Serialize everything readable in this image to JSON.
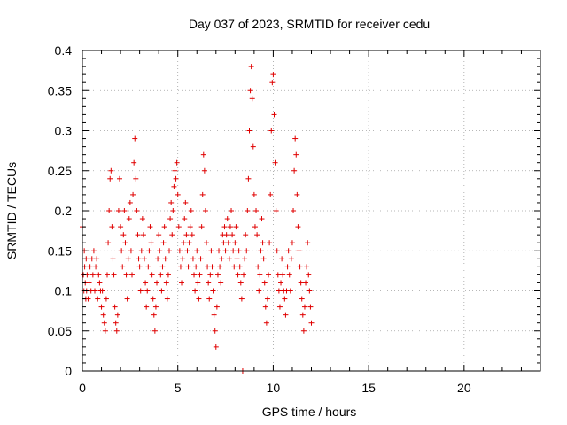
{
  "chart_data": {
    "type": "scatter",
    "title": "Day 037 of 2023, SRMTID for receiver cedu",
    "xlabel": "GPS time / hours",
    "ylabel": "SRMTID / TECUs",
    "xlim": [
      0,
      24
    ],
    "ylim": [
      0,
      0.4
    ],
    "xticks": [
      0,
      5,
      10,
      15,
      20
    ],
    "xtick_labels": [
      "0",
      "5",
      "10",
      "15",
      "20"
    ],
    "yticks": [
      0,
      0.05,
      0.1,
      0.15,
      0.2,
      0.25,
      0.3,
      0.35,
      0.4
    ],
    "ytick_labels": [
      "0",
      "0.05",
      "0.1",
      "0.15",
      "0.2",
      "0.25",
      "0.3",
      "0.35",
      "0.4"
    ],
    "grid": true,
    "marker": "+",
    "series": [
      {
        "color": "#e00000",
        "points": [
          [
            0.0,
            0.18
          ],
          [
            0.05,
            0.12
          ],
          [
            0.08,
            0.1
          ],
          [
            0.1,
            0.15
          ],
          [
            0.12,
            0.13
          ],
          [
            0.15,
            0.11
          ],
          [
            0.18,
            0.09
          ],
          [
            0.2,
            0.14
          ],
          [
            0.22,
            0.1
          ],
          [
            0.25,
            0.12
          ],
          [
            0.3,
            0.09
          ],
          [
            0.35,
            0.11
          ],
          [
            0.4,
            0.13
          ],
          [
            0.45,
            0.1
          ],
          [
            0.5,
            0.14
          ],
          [
            0.55,
            0.12
          ],
          [
            0.6,
            0.15
          ],
          [
            0.65,
            0.1
          ],
          [
            0.7,
            0.13
          ],
          [
            0.75,
            0.14
          ],
          [
            0.8,
            0.09
          ],
          [
            0.85,
            0.12
          ],
          [
            0.9,
            0.11
          ],
          [
            0.95,
            0.1
          ],
          [
            1.0,
            0.08
          ],
          [
            1.05,
            0.1
          ],
          [
            1.1,
            0.07
          ],
          [
            1.15,
            0.06
          ],
          [
            1.2,
            0.05
          ],
          [
            1.25,
            0.09
          ],
          [
            1.3,
            0.12
          ],
          [
            1.35,
            0.16
          ],
          [
            1.4,
            0.2
          ],
          [
            1.45,
            0.24
          ],
          [
            1.5,
            0.25
          ],
          [
            1.55,
            0.18
          ],
          [
            1.6,
            0.14
          ],
          [
            1.65,
            0.12
          ],
          [
            1.7,
            0.08
          ],
          [
            1.75,
            0.06
          ],
          [
            1.8,
            0.05
          ],
          [
            1.85,
            0.07
          ],
          [
            1.9,
            0.2
          ],
          [
            1.95,
            0.24
          ],
          [
            2.0,
            0.18
          ],
          [
            2.05,
            0.15
          ],
          [
            2.1,
            0.13
          ],
          [
            2.15,
            0.17
          ],
          [
            2.2,
            0.2
          ],
          [
            2.25,
            0.16
          ],
          [
            2.3,
            0.12
          ],
          [
            2.35,
            0.09
          ],
          [
            2.4,
            0.14
          ],
          [
            2.45,
            0.19
          ],
          [
            2.5,
            0.21
          ],
          [
            2.55,
            0.15
          ],
          [
            2.6,
            0.12
          ],
          [
            2.65,
            0.22
          ],
          [
            2.7,
            0.26
          ],
          [
            2.75,
            0.29
          ],
          [
            2.8,
            0.24
          ],
          [
            2.85,
            0.2
          ],
          [
            2.9,
            0.17
          ],
          [
            2.95,
            0.14
          ],
          [
            3.0,
            0.13
          ],
          [
            3.05,
            0.1
          ],
          [
            3.1,
            0.15
          ],
          [
            3.15,
            0.19
          ],
          [
            3.2,
            0.17
          ],
          [
            3.25,
            0.14
          ],
          [
            3.3,
            0.11
          ],
          [
            3.35,
            0.08
          ],
          [
            3.4,
            0.1
          ],
          [
            3.45,
            0.13
          ],
          [
            3.5,
            0.15
          ],
          [
            3.55,
            0.18
          ],
          [
            3.6,
            0.16
          ],
          [
            3.65,
            0.12
          ],
          [
            3.7,
            0.09
          ],
          [
            3.75,
            0.07
          ],
          [
            3.8,
            0.05
          ],
          [
            3.85,
            0.08
          ],
          [
            3.9,
            0.11
          ],
          [
            3.95,
            0.14
          ],
          [
            4.0,
            0.17
          ],
          [
            4.05,
            0.15
          ],
          [
            4.1,
            0.12
          ],
          [
            4.15,
            0.1
          ],
          [
            4.2,
            0.13
          ],
          [
            4.25,
            0.16
          ],
          [
            4.3,
            0.18
          ],
          [
            4.35,
            0.14
          ],
          [
            4.4,
            0.11
          ],
          [
            4.45,
            0.09
          ],
          [
            4.5,
            0.12
          ],
          [
            4.55,
            0.15
          ],
          [
            4.6,
            0.19
          ],
          [
            4.65,
            0.21
          ],
          [
            4.7,
            0.17
          ],
          [
            4.75,
            0.2
          ],
          [
            4.8,
            0.23
          ],
          [
            4.85,
            0.25
          ],
          [
            4.9,
            0.24
          ],
          [
            4.95,
            0.26
          ],
          [
            5.0,
            0.22
          ],
          [
            5.05,
            0.18
          ],
          [
            5.1,
            0.15
          ],
          [
            5.15,
            0.13
          ],
          [
            5.2,
            0.11
          ],
          [
            5.25,
            0.14
          ],
          [
            5.3,
            0.16
          ],
          [
            5.35,
            0.19
          ],
          [
            5.4,
            0.21
          ],
          [
            5.45,
            0.17
          ],
          [
            5.5,
            0.15
          ],
          [
            5.55,
            0.13
          ],
          [
            5.6,
            0.16
          ],
          [
            5.65,
            0.18
          ],
          [
            5.7,
            0.2
          ],
          [
            5.75,
            0.17
          ],
          [
            5.8,
            0.14
          ],
          [
            5.85,
            0.12
          ],
          [
            5.9,
            0.1
          ],
          [
            5.95,
            0.13
          ],
          [
            6.0,
            0.15
          ],
          [
            6.05,
            0.11
          ],
          [
            6.1,
            0.09
          ],
          [
            6.15,
            0.12
          ],
          [
            6.2,
            0.14
          ],
          [
            6.25,
            0.18
          ],
          [
            6.3,
            0.22
          ],
          [
            6.35,
            0.27
          ],
          [
            6.4,
            0.25
          ],
          [
            6.45,
            0.2
          ],
          [
            6.5,
            0.16
          ],
          [
            6.55,
            0.13
          ],
          [
            6.6,
            0.11
          ],
          [
            6.65,
            0.09
          ],
          [
            6.7,
            0.12
          ],
          [
            6.75,
            0.15
          ],
          [
            6.8,
            0.13
          ],
          [
            6.85,
            0.1
          ],
          [
            6.9,
            0.07
          ],
          [
            6.95,
            0.05
          ],
          [
            7.0,
            0.03
          ],
          [
            7.05,
            0.08
          ],
          [
            7.1,
            0.12
          ],
          [
            7.15,
            0.15
          ],
          [
            7.2,
            0.13
          ],
          [
            7.25,
            0.11
          ],
          [
            7.3,
            0.14
          ],
          [
            7.35,
            0.17
          ],
          [
            7.4,
            0.16
          ],
          [
            7.45,
            0.18
          ],
          [
            7.5,
            0.15
          ],
          [
            7.55,
            0.17
          ],
          [
            7.6,
            0.19
          ],
          [
            7.65,
            0.16
          ],
          [
            7.7,
            0.14
          ],
          [
            7.75,
            0.18
          ],
          [
            7.8,
            0.2
          ],
          [
            7.85,
            0.17
          ],
          [
            7.9,
            0.15
          ],
          [
            7.95,
            0.13
          ],
          [
            8.0,
            0.16
          ],
          [
            8.05,
            0.18
          ],
          [
            8.1,
            0.14
          ],
          [
            8.15,
            0.12
          ],
          [
            8.2,
            0.15
          ],
          [
            8.25,
            0.13
          ],
          [
            8.3,
            0.11
          ],
          [
            8.35,
            0.09
          ],
          [
            8.4,
            0.0
          ],
          [
            8.45,
            0.12
          ],
          [
            8.5,
            0.14
          ],
          [
            8.55,
            0.17
          ],
          [
            8.6,
            0.15
          ],
          [
            8.65,
            0.2
          ],
          [
            8.7,
            0.24
          ],
          [
            8.75,
            0.3
          ],
          [
            8.8,
            0.35
          ],
          [
            8.85,
            0.38
          ],
          [
            8.9,
            0.34
          ],
          [
            8.95,
            0.28
          ],
          [
            9.0,
            0.22
          ],
          [
            9.05,
            0.18
          ],
          [
            9.1,
            0.2
          ],
          [
            9.15,
            0.17
          ],
          [
            9.2,
            0.13
          ],
          [
            9.25,
            0.1
          ],
          [
            9.3,
            0.12
          ],
          [
            9.35,
            0.15
          ],
          [
            9.4,
            0.19
          ],
          [
            9.45,
            0.16
          ],
          [
            9.5,
            0.14
          ],
          [
            9.55,
            0.11
          ],
          [
            9.6,
            0.08
          ],
          [
            9.65,
            0.06
          ],
          [
            9.7,
            0.09
          ],
          [
            9.75,
            0.12
          ],
          [
            9.8,
            0.16
          ],
          [
            9.85,
            0.22
          ],
          [
            9.9,
            0.3
          ],
          [
            9.95,
            0.36
          ],
          [
            10.0,
            0.37
          ],
          [
            10.05,
            0.32
          ],
          [
            10.1,
            0.26
          ],
          [
            10.15,
            0.2
          ],
          [
            10.2,
            0.15
          ],
          [
            10.25,
            0.12
          ],
          [
            10.3,
            0.1
          ],
          [
            10.35,
            0.08
          ],
          [
            10.4,
            0.11
          ],
          [
            10.45,
            0.14
          ],
          [
            10.5,
            0.12
          ],
          [
            10.55,
            0.1
          ],
          [
            10.6,
            0.09
          ],
          [
            10.65,
            0.07
          ],
          [
            10.7,
            0.1
          ],
          [
            10.75,
            0.13
          ],
          [
            10.8,
            0.15
          ],
          [
            10.85,
            0.12
          ],
          [
            10.9,
            0.1
          ],
          [
            10.95,
            0.14
          ],
          [
            11.0,
            0.16
          ],
          [
            11.05,
            0.2
          ],
          [
            11.1,
            0.25
          ],
          [
            11.15,
            0.29
          ],
          [
            11.2,
            0.27
          ],
          [
            11.25,
            0.22
          ],
          [
            11.3,
            0.18
          ],
          [
            11.35,
            0.15
          ],
          [
            11.4,
            0.13
          ],
          [
            11.45,
            0.11
          ],
          [
            11.5,
            0.09
          ],
          [
            11.55,
            0.07
          ],
          [
            11.6,
            0.05
          ],
          [
            11.65,
            0.08
          ],
          [
            11.7,
            0.11
          ],
          [
            11.75,
            0.13
          ],
          [
            11.8,
            0.16
          ],
          [
            11.85,
            0.12
          ],
          [
            11.9,
            0.1
          ],
          [
            11.95,
            0.08
          ],
          [
            12.0,
            0.06
          ]
        ]
      }
    ]
  }
}
